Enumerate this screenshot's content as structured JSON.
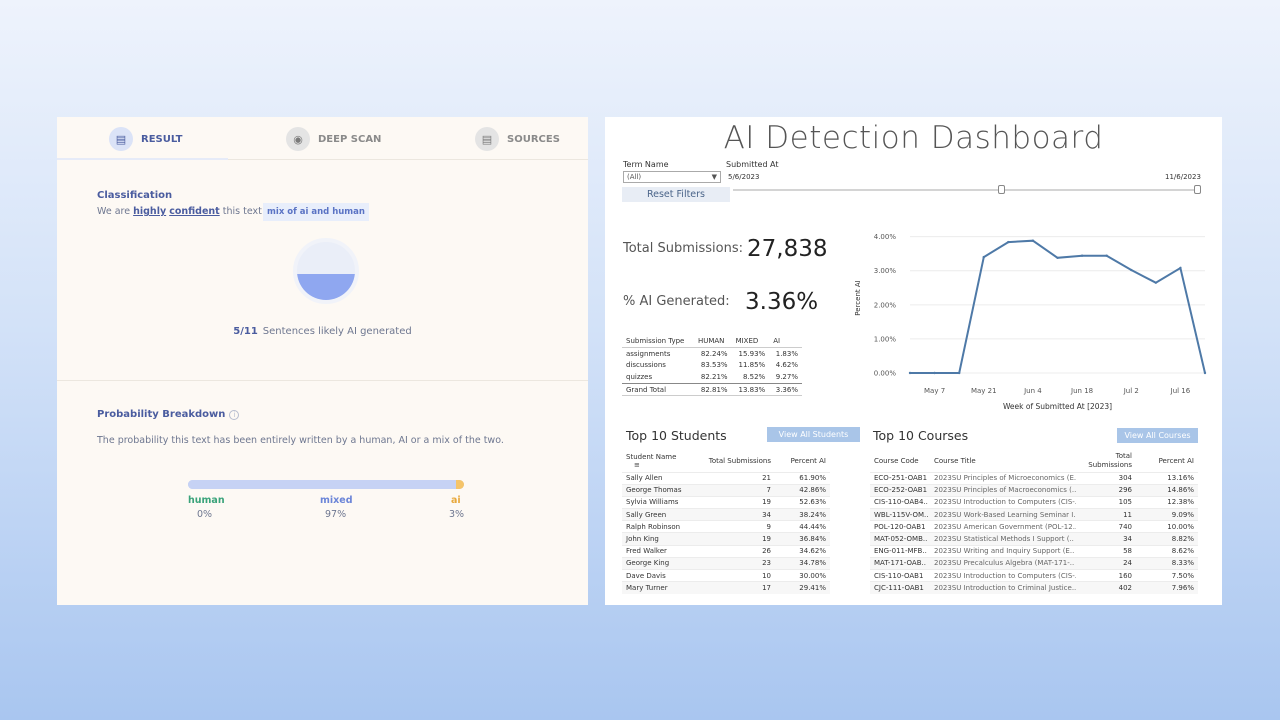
{
  "left": {
    "tabs": [
      {
        "label": "RESULT",
        "icon": "document-icon"
      },
      {
        "label": "DEEP SCAN",
        "icon": "fingerprint-icon"
      },
      {
        "label": "SOURCES",
        "icon": "search-doc-icon"
      }
    ],
    "classification": {
      "title": "Classification",
      "prefix": "We are",
      "confidence_1": "highly",
      "confidence_2": "confident",
      "suffix": "this text is a",
      "badge": "mix of ai and human"
    },
    "sentences": {
      "count": "5/11",
      "text": "Sentences likely AI generated",
      "fraction": 0.45
    },
    "probability": {
      "title": "Probability Breakdown",
      "info": "i",
      "text": "The probability this text has been entirely written by a human, AI or a mix of the two.",
      "items": [
        {
          "label": "human",
          "value": "0%",
          "pct": 0,
          "color": "#3aa37a"
        },
        {
          "label": "mixed",
          "value": "97%",
          "pct": 97,
          "color": "#6b85d8"
        },
        {
          "label": "ai",
          "value": "3%",
          "pct": 3,
          "color": "#e8a93c"
        }
      ]
    }
  },
  "right": {
    "title": "AI Detection Dashboard",
    "filters": {
      "term_label": "Term Name",
      "term_value": "(All)",
      "submitted_label": "Submitted At",
      "date_start": "5/6/2023",
      "date_end": "11/6/2023",
      "reset_label": "Reset Filters"
    },
    "kpis": {
      "total_label": "Total Submissions:",
      "total_value": "27,838",
      "ai_label": "% AI Generated:",
      "ai_value": "3.36%"
    },
    "type_table": {
      "headers": [
        "Submission Type",
        "HUMAN",
        "MIXED",
        "AI"
      ],
      "rows": [
        [
          "assignments",
          "82.24%",
          "15.93%",
          "1.83%"
        ],
        [
          "discussions",
          "83.53%",
          "11.85%",
          "4.62%"
        ],
        [
          "quizzes",
          "82.21%",
          "8.52%",
          "9.27%"
        ],
        [
          "Grand Total",
          "82.81%",
          "13.83%",
          "3.36%"
        ]
      ]
    },
    "chart_data": {
      "type": "line",
      "title": "",
      "xlabel": "Week of Submitted At [2023]",
      "ylabel": "Percent AI",
      "x_ticks": [
        "May 7",
        "May 21",
        "Jun 4",
        "Jun 18",
        "Jul 2",
        "Jul 16"
      ],
      "y_ticks": [
        "0.00%",
        "1.00%",
        "2.00%",
        "3.00%",
        "4.00%"
      ],
      "ylim": [
        0,
        4.4
      ],
      "x": [
        "Apr 30",
        "May 7",
        "May 14",
        "May 21",
        "May 28",
        "Jun 4",
        "Jun 11",
        "Jun 18",
        "Jun 25",
        "Jul 2",
        "Jul 9",
        "Jul 16",
        "Jul 23"
      ],
      "values": [
        0,
        0,
        0,
        3.4,
        3.84,
        3.88,
        3.38,
        3.44,
        3.44,
        3.02,
        2.65,
        3.08,
        0
      ],
      "color": "#4e79a7"
    },
    "students": {
      "title": "Top 10 Students",
      "button": "View All Students",
      "headers": [
        "Student Name",
        "Total Submissions",
        "Percent AI"
      ],
      "rows": [
        [
          "Sally Allen",
          "21",
          "61.90%"
        ],
        [
          "George Thomas",
          "7",
          "42.86%"
        ],
        [
          "Sylvia Williams",
          "19",
          "52.63%"
        ],
        [
          "Sally Green",
          "34",
          "38.24%"
        ],
        [
          "Ralph Robinson",
          "9",
          "44.44%"
        ],
        [
          "John King",
          "19",
          "36.84%"
        ],
        [
          "Fred Walker",
          "26",
          "34.62%"
        ],
        [
          "George King",
          "23",
          "34.78%"
        ],
        [
          "Dave Davis",
          "10",
          "30.00%"
        ],
        [
          "Mary Turner",
          "17",
          "29.41%"
        ]
      ]
    },
    "courses": {
      "title": "Top 10 Courses",
      "button": "View All Courses",
      "headers": [
        "Course Code",
        "Course Title",
        "Total Submissions",
        "Percent AI"
      ],
      "rows": [
        [
          "ECO-251-OAB1",
          "2023SU Principles of Microeconomics (E..",
          "304",
          "13.16%"
        ],
        [
          "ECO-252-OAB1",
          "2023SU Principles of Macroeconomics (..",
          "296",
          "14.86%"
        ],
        [
          "CIS-110-OAB4..",
          "2023SU Introduction to Computers (CIS-..",
          "105",
          "12.38%"
        ],
        [
          "WBL-115V-OM..",
          "2023SU Work-Based Learning Seminar I..",
          "11",
          "9.09%"
        ],
        [
          "POL-120-OAB1",
          "2023SU American Government (POL-12..",
          "740",
          "10.00%"
        ],
        [
          "MAT-052-OMB..",
          "2023SU Statistical Methods I Support (..",
          "34",
          "8.82%"
        ],
        [
          "ENG-011-MFB..",
          "2023SU Writing and Inquiry Support (E..",
          "58",
          "8.62%"
        ],
        [
          "MAT-171-OAB..",
          "2023SU Precalculus Algebra (MAT-171-..",
          "24",
          "8.33%"
        ],
        [
          "CIS-110-OAB1",
          "2023SU Introduction to Computers (CIS-..",
          "160",
          "7.50%"
        ],
        [
          "CJC-111-OAB1",
          "2023SU Introduction to Criminal Justice..",
          "402",
          "7.96%"
        ]
      ]
    }
  }
}
